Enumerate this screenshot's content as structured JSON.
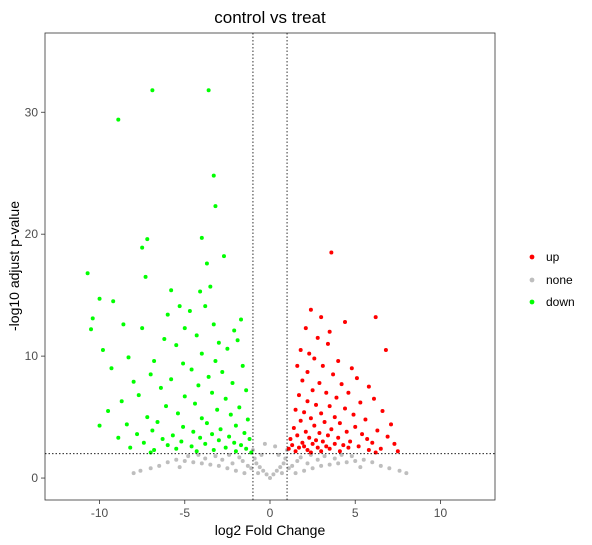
{
  "chart_data": {
    "type": "scatter",
    "title": "control vs treat",
    "xlabel": "log2 Fold Change",
    "ylabel": "-log10 adjust p-value",
    "xlim": [
      -13.2,
      13.2
    ],
    "ylim": [
      -1.8,
      36.5
    ],
    "xticks": [
      -10,
      -5,
      0,
      5,
      10
    ],
    "yticks": [
      0,
      10,
      20,
      30
    ],
    "xtick_labels": [
      "-10",
      "-5",
      "0",
      "5",
      "10"
    ],
    "ytick_labels": [
      "0",
      "10",
      "20",
      "30"
    ],
    "grid": false,
    "legend_position": "right",
    "thresholds": {
      "log2fc": [
        -1,
        1
      ],
      "neg_log10_padj": 2
    },
    "colors": {
      "up": "#ff0000",
      "none": "#bebebe",
      "down": "#00ff00"
    },
    "series": [
      {
        "name": "up",
        "color": "#ff0000",
        "points": [
          [
            3.6,
            18.5
          ],
          [
            2.4,
            13.8
          ],
          [
            6.2,
            13.2
          ],
          [
            3.0,
            13.2
          ],
          [
            4.4,
            12.8
          ],
          [
            2.1,
            12.3
          ],
          [
            3.5,
            12.0
          ],
          [
            2.8,
            11.5
          ],
          [
            3.4,
            11.0
          ],
          [
            1.8,
            10.5
          ],
          [
            6.8,
            10.5
          ],
          [
            2.3,
            10.2
          ],
          [
            2.6,
            9.8
          ],
          [
            4.0,
            9.6
          ],
          [
            1.6,
            9.2
          ],
          [
            3.1,
            9.2
          ],
          [
            4.8,
            9.0
          ],
          [
            2.2,
            8.7
          ],
          [
            3.7,
            8.5
          ],
          [
            5.1,
            8.2
          ],
          [
            1.9,
            8.0
          ],
          [
            2.9,
            7.8
          ],
          [
            4.2,
            7.7
          ],
          [
            5.8,
            7.5
          ],
          [
            2.5,
            7.2
          ],
          [
            3.3,
            7.0
          ],
          [
            4.6,
            7.0
          ],
          [
            1.7,
            6.8
          ],
          [
            3.9,
            6.6
          ],
          [
            6.1,
            6.5
          ],
          [
            2.2,
            6.3
          ],
          [
            5.3,
            6.2
          ],
          [
            2.7,
            6.0
          ],
          [
            3.5,
            5.9
          ],
          [
            4.4,
            5.7
          ],
          [
            1.5,
            5.6
          ],
          [
            6.6,
            5.5
          ],
          [
            2.0,
            5.4
          ],
          [
            3.0,
            5.3
          ],
          [
            4.9,
            5.2
          ],
          [
            3.8,
            5.0
          ],
          [
            2.4,
            4.9
          ],
          [
            5.6,
            4.8
          ],
          [
            1.8,
            4.7
          ],
          [
            3.2,
            4.6
          ],
          [
            4.1,
            4.5
          ],
          [
            7.1,
            4.4
          ],
          [
            2.6,
            4.3
          ],
          [
            5.0,
            4.2
          ],
          [
            1.4,
            4.1
          ],
          [
            3.6,
            4.0
          ],
          [
            6.3,
            3.9
          ],
          [
            2.1,
            3.8
          ],
          [
            4.5,
            3.8
          ],
          [
            2.9,
            3.7
          ],
          [
            5.4,
            3.6
          ],
          [
            1.6,
            3.5
          ],
          [
            3.4,
            3.5
          ],
          [
            6.9,
            3.4
          ],
          [
            2.3,
            3.3
          ],
          [
            4.0,
            3.3
          ],
          [
            1.2,
            3.2
          ],
          [
            5.7,
            3.2
          ],
          [
            2.7,
            3.1
          ],
          [
            3.1,
            3.0
          ],
          [
            4.7,
            3.0
          ],
          [
            1.9,
            2.9
          ],
          [
            6.0,
            2.9
          ],
          [
            2.5,
            2.8
          ],
          [
            3.8,
            2.8
          ],
          [
            7.3,
            2.8
          ],
          [
            1.3,
            2.7
          ],
          [
            4.3,
            2.7
          ],
          [
            2.0,
            2.6
          ],
          [
            3.3,
            2.6
          ],
          [
            5.2,
            2.6
          ],
          [
            1.7,
            2.5
          ],
          [
            2.8,
            2.5
          ],
          [
            4.6,
            2.5
          ],
          [
            6.5,
            2.4
          ],
          [
            1.1,
            2.4
          ],
          [
            3.5,
            2.4
          ],
          [
            2.2,
            2.3
          ],
          [
            5.8,
            2.3
          ],
          [
            1.5,
            2.2
          ],
          [
            3.0,
            2.2
          ],
          [
            4.1,
            2.2
          ],
          [
            7.5,
            2.2
          ],
          [
            2.4,
            2.1
          ],
          [
            6.2,
            2.1
          ]
        ]
      },
      {
        "name": "none",
        "color": "#bebebe",
        "points": [
          [
            0.0,
            0.0
          ],
          [
            0.2,
            0.3
          ],
          [
            -0.2,
            0.3
          ],
          [
            0.4,
            0.6
          ],
          [
            -0.4,
            0.6
          ],
          [
            0.6,
            0.9
          ],
          [
            -0.6,
            0.9
          ],
          [
            0.8,
            1.2
          ],
          [
            -0.8,
            1.2
          ],
          [
            0.9,
            1.6
          ],
          [
            -0.9,
            1.6
          ],
          [
            0.5,
            1.9
          ],
          [
            -0.5,
            1.9
          ],
          [
            1.0,
            2.3
          ],
          [
            -1.0,
            2.3
          ],
          [
            0.3,
            2.6
          ],
          [
            -0.3,
            2.8
          ],
          [
            1.5,
            0.4
          ],
          [
            -1.5,
            0.4
          ],
          [
            2.0,
            0.6
          ],
          [
            -2.0,
            0.6
          ],
          [
            2.5,
            0.8
          ],
          [
            -2.5,
            0.8
          ],
          [
            3.0,
            1.0
          ],
          [
            -3.0,
            1.0
          ],
          [
            3.5,
            1.1
          ],
          [
            -3.5,
            1.1
          ],
          [
            4.0,
            1.2
          ],
          [
            -4.0,
            1.2
          ],
          [
            4.5,
            1.3
          ],
          [
            -4.5,
            1.3
          ],
          [
            5.0,
            1.4
          ],
          [
            -5.0,
            1.4
          ],
          [
            5.5,
            1.5
          ],
          [
            -5.5,
            1.5
          ],
          [
            6.0,
            1.3
          ],
          [
            -6.0,
            1.3
          ],
          [
            6.5,
            1.0
          ],
          [
            -6.5,
            1.0
          ],
          [
            7.0,
            0.8
          ],
          [
            -7.0,
            0.8
          ],
          [
            1.8,
            1.7
          ],
          [
            -1.8,
            1.7
          ],
          [
            2.4,
            1.9
          ],
          [
            -2.4,
            1.9
          ],
          [
            3.2,
            1.8
          ],
          [
            -3.2,
            1.8
          ],
          [
            4.2,
            1.9
          ],
          [
            -4.2,
            1.9
          ],
          [
            1.3,
            1.0
          ],
          [
            -1.3,
            1.0
          ],
          [
            2.8,
            1.5
          ],
          [
            -2.8,
            1.5
          ],
          [
            3.8,
            1.6
          ],
          [
            -3.8,
            1.6
          ],
          [
            4.8,
            1.8
          ],
          [
            -4.8,
            1.8
          ],
          [
            5.3,
            0.9
          ],
          [
            -5.3,
            0.9
          ],
          [
            1.6,
            1.4
          ],
          [
            -1.6,
            1.4
          ],
          [
            2.2,
            1.2
          ],
          [
            -2.2,
            1.2
          ],
          [
            7.6,
            0.6
          ],
          [
            -7.6,
            0.6
          ],
          [
            8.0,
            0.4
          ],
          [
            -8.0,
            0.4
          ],
          [
            1.1,
            0.8
          ],
          [
            -1.1,
            0.8
          ],
          [
            0.7,
            0.4
          ],
          [
            -0.7,
            0.4
          ]
        ]
      },
      {
        "name": "down",
        "color": "#00ff00",
        "points": [
          [
            -6.9,
            31.8
          ],
          [
            -3.6,
            31.8
          ],
          [
            -8.9,
            29.4
          ],
          [
            -3.3,
            24.8
          ],
          [
            -3.2,
            22.3
          ],
          [
            -7.2,
            19.6
          ],
          [
            -4.0,
            19.7
          ],
          [
            -7.5,
            18.9
          ],
          [
            -2.7,
            18.2
          ],
          [
            -3.7,
            17.6
          ],
          [
            -10.7,
            16.8
          ],
          [
            -7.3,
            16.5
          ],
          [
            -3.5,
            15.7
          ],
          [
            -5.8,
            15.4
          ],
          [
            -4.1,
            15.3
          ],
          [
            -10.0,
            14.7
          ],
          [
            -9.2,
            14.5
          ],
          [
            -5.3,
            14.1
          ],
          [
            -3.8,
            14.1
          ],
          [
            -4.7,
            13.7
          ],
          [
            -6.0,
            13.4
          ],
          [
            -10.4,
            13.1
          ],
          [
            -1.7,
            13.0
          ],
          [
            -8.6,
            12.6
          ],
          [
            -3.3,
            12.6
          ],
          [
            -7.5,
            12.3
          ],
          [
            -5.0,
            12.3
          ],
          [
            -2.1,
            12.1
          ],
          [
            -10.5,
            12.2
          ],
          [
            -4.3,
            11.7
          ],
          [
            -1.9,
            11.3
          ],
          [
            -6.2,
            11.4
          ],
          [
            -3.0,
            11.1
          ],
          [
            -5.5,
            10.9
          ],
          [
            -2.5,
            10.6
          ],
          [
            -9.8,
            10.5
          ],
          [
            -4.0,
            10.2
          ],
          [
            -8.3,
            9.9
          ],
          [
            -6.8,
            9.6
          ],
          [
            -3.2,
            9.6
          ],
          [
            -5.1,
            9.4
          ],
          [
            -1.6,
            9.2
          ],
          [
            -9.3,
            9.0
          ],
          [
            -4.6,
            8.9
          ],
          [
            -2.8,
            8.7
          ],
          [
            -7.0,
            8.5
          ],
          [
            -3.6,
            8.3
          ],
          [
            -5.8,
            8.1
          ],
          [
            -8.0,
            7.9
          ],
          [
            -2.2,
            7.8
          ],
          [
            -4.2,
            7.6
          ],
          [
            -6.4,
            7.4
          ],
          [
            -1.4,
            7.2
          ],
          [
            -3.4,
            7.0
          ],
          [
            -7.7,
            6.8
          ],
          [
            -5.0,
            6.7
          ],
          [
            -2.6,
            6.5
          ],
          [
            -8.7,
            6.3
          ],
          [
            -4.4,
            6.1
          ],
          [
            -6.1,
            5.9
          ],
          [
            -1.8,
            5.8
          ],
          [
            -3.1,
            5.6
          ],
          [
            -9.5,
            5.5
          ],
          [
            -5.4,
            5.3
          ],
          [
            -2.3,
            5.2
          ],
          [
            -7.2,
            5.0
          ],
          [
            -4.0,
            4.9
          ],
          [
            -1.3,
            4.8
          ],
          [
            -6.6,
            4.6
          ],
          [
            -3.7,
            4.5
          ],
          [
            -8.4,
            4.4
          ],
          [
            -2.0,
            4.3
          ],
          [
            -5.1,
            4.2
          ],
          [
            -10.0,
            4.3
          ],
          [
            -2.9,
            4.0
          ],
          [
            -6.9,
            3.9
          ],
          [
            -4.5,
            3.8
          ],
          [
            -1.5,
            3.7
          ],
          [
            -7.8,
            3.6
          ],
          [
            -3.4,
            3.6
          ],
          [
            -5.7,
            3.5
          ],
          [
            -2.4,
            3.4
          ],
          [
            -8.9,
            3.3
          ],
          [
            -4.1,
            3.3
          ],
          [
            -1.2,
            3.2
          ],
          [
            -6.3,
            3.2
          ],
          [
            -3.0,
            3.1
          ],
          [
            -5.2,
            3.0
          ],
          [
            -2.1,
            2.9
          ],
          [
            -7.4,
            2.9
          ],
          [
            -3.8,
            2.8
          ],
          [
            -1.7,
            2.7
          ],
          [
            -6.0,
            2.7
          ],
          [
            -4.6,
            2.6
          ],
          [
            -2.6,
            2.5
          ],
          [
            -8.2,
            2.5
          ],
          [
            -1.4,
            2.4
          ],
          [
            -5.5,
            2.4
          ],
          [
            -3.3,
            2.3
          ],
          [
            -6.8,
            2.3
          ],
          [
            -2.0,
            2.2
          ],
          [
            -4.3,
            2.2
          ],
          [
            -7.0,
            2.1
          ],
          [
            -1.1,
            2.1
          ]
        ]
      }
    ]
  }
}
